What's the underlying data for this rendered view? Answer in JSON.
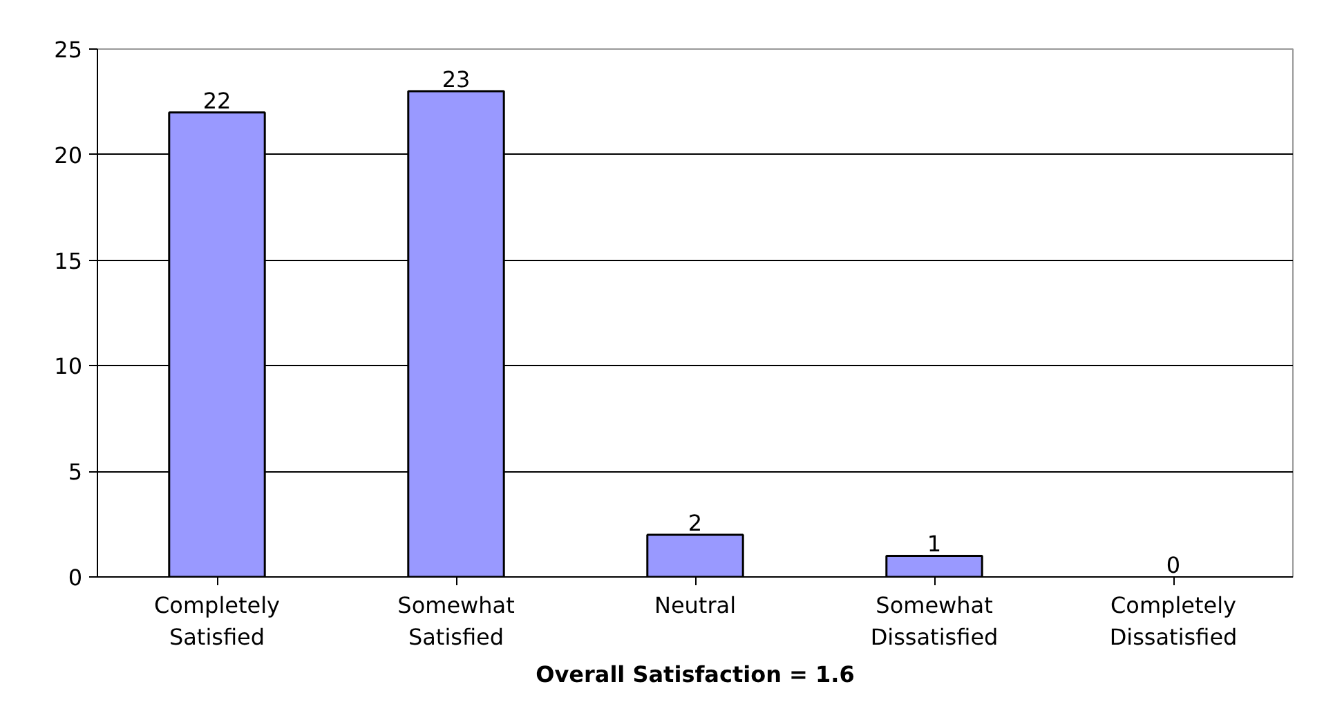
{
  "chart_data": {
    "type": "bar",
    "xlabel": "Overall Satisfaction = 1.6",
    "categories": [
      "Completely Satisfied",
      "Somewhat Satisfied",
      "Neutral",
      "Somewhat Dissatisfied",
      "Completely Dissatisfied"
    ],
    "values": [
      22,
      23,
      2,
      1,
      0
    ],
    "color": "#9999ff",
    "ylim": [
      0,
      25
    ],
    "yticks": [
      0,
      5,
      10,
      15,
      20,
      25
    ],
    "grid": "y",
    "data_labels": true
  }
}
